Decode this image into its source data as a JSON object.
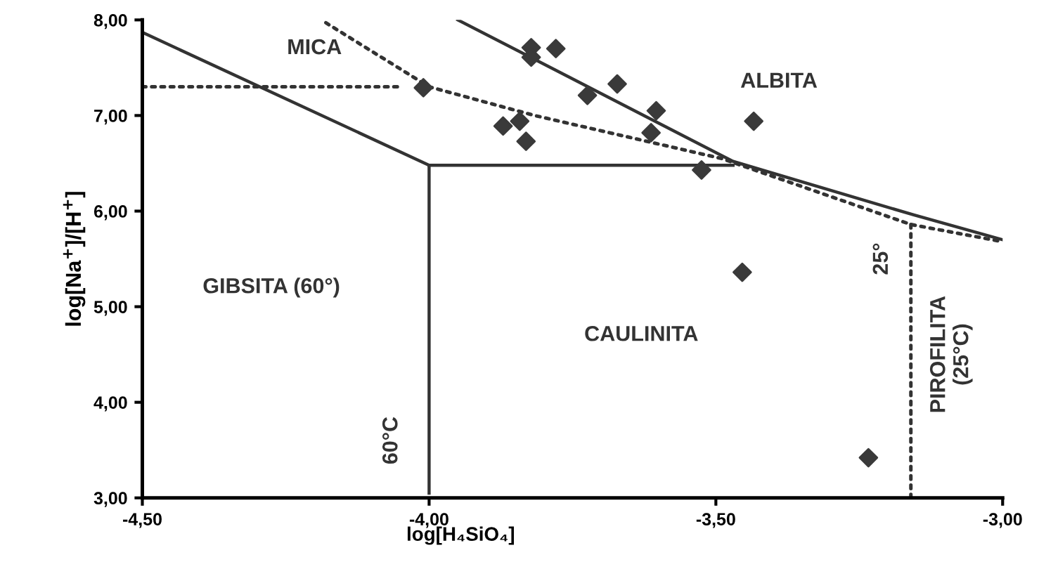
{
  "chart_data": {
    "type": "scatter",
    "xlabel": "log[H₄SiO₄]",
    "ylabel": "log[Na$^{+}$]/[H$^{+}$]",
    "xlim": [
      -4.5,
      -3.0
    ],
    "ylim": [
      3.0,
      8.0
    ],
    "xticks": [
      {
        "value": -4.5,
        "label": "-4,50"
      },
      {
        "value": -4.0,
        "label": "-4,00"
      },
      {
        "value": -3.5,
        "label": "-3,50"
      },
      {
        "value": -3.0,
        "label": "-3,00"
      }
    ],
    "yticks": [
      {
        "value": 3,
        "label": "3,00"
      },
      {
        "value": 4,
        "label": "4,00"
      },
      {
        "value": 5,
        "label": "5,00"
      },
      {
        "value": 6,
        "label": "6,00"
      },
      {
        "value": 7,
        "label": "7,00"
      },
      {
        "value": 8,
        "label": "8,00"
      }
    ],
    "grid": false,
    "legend": false,
    "series": [
      {
        "type": "scatter",
        "marker": "diamond",
        "color": "#3a3a3a",
        "x": [
          -3.822,
          -3.822,
          -3.779,
          -4.01,
          -3.724,
          -3.672,
          -3.604,
          -3.613,
          -3.871,
          -3.842,
          -3.831,
          -3.525,
          -3.434,
          -3.454,
          -3.234
        ],
        "values": [
          7.71,
          7.61,
          7.7,
          7.29,
          7.21,
          7.33,
          7.05,
          6.82,
          6.89,
          6.94,
          6.73,
          6.43,
          6.94,
          5.36,
          3.42
        ]
      },
      {
        "type": "line",
        "line_style": "solid",
        "marker": "none",
        "color": "#333333",
        "x": [
          -4.5,
          -4.0,
          -4.0
        ],
        "values": [
          7.87,
          6.48,
          3.05
        ]
      },
      {
        "type": "line",
        "line_style": "solid",
        "marker": "none",
        "color": "#333333",
        "x": [
          -4.0,
          -3.47
        ],
        "values": [
          6.48,
          6.48
        ]
      },
      {
        "type": "line",
        "line_style": "solid",
        "marker": "none",
        "color": "#333333",
        "x": [
          -3.95,
          -3.47,
          -3.155,
          -3.0
        ],
        "values": [
          8.0,
          6.52,
          5.96,
          5.7
        ]
      },
      {
        "type": "line",
        "line_style": "dotted",
        "marker": "none",
        "color": "#333333",
        "x": [
          -4.5,
          -4.05
        ],
        "values": [
          7.3,
          7.3
        ]
      },
      {
        "type": "line",
        "line_style": "dotted",
        "marker": "none",
        "color": "#333333",
        "x": [
          -4.18,
          -4.0,
          -3.816,
          -3.49,
          -3.16,
          -3.0
        ],
        "values": [
          7.97,
          7.3,
          7.0,
          6.55,
          5.86,
          5.68
        ]
      },
      {
        "type": "line",
        "line_style": "dotted",
        "marker": "none",
        "color": "#333333",
        "x": [
          -3.16,
          -3.16
        ],
        "values": [
          5.86,
          3.0
        ]
      }
    ],
    "annotations": [
      "MICA",
      "ALBITA",
      "GIBSITA (60°)",
      "CAULINITA",
      "60°C",
      "25°",
      "PIROFILITA\n(25°C)"
    ]
  }
}
